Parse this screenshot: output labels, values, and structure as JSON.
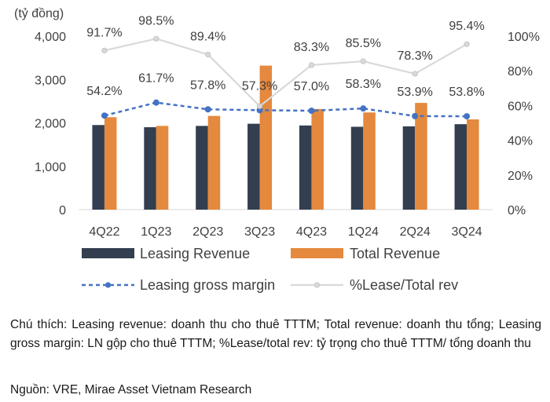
{
  "chart_data": {
    "type": "bar+line",
    "unit_label": "(tỷ đồng)",
    "categories": [
      "4Q22",
      "1Q23",
      "2Q23",
      "3Q23",
      "4Q23",
      "1Q24",
      "2Q24",
      "3Q24"
    ],
    "series": [
      {
        "name": "Leasing Revenue",
        "type": "bar",
        "axis": "left",
        "color": "#333f50",
        "values": [
          1950,
          1900,
          1930,
          1980,
          1940,
          1910,
          1920,
          1970
        ]
      },
      {
        "name": "Total Revenue",
        "type": "bar",
        "axis": "left",
        "color": "#e4893d",
        "values": [
          2130,
          1930,
          2160,
          3320,
          2320,
          2240,
          2460,
          2080
        ]
      },
      {
        "name": "Leasing gross margin",
        "type": "line",
        "axis": "right",
        "color": "#4472c4",
        "values": [
          54.2,
          61.7,
          57.8,
          57.3,
          57.0,
          58.3,
          53.9,
          53.8
        ],
        "labels": [
          "54.2%",
          "61.7%",
          "57.8%",
          "57.3%",
          "57.0%",
          "58.3%",
          "53.9%",
          "53.8%"
        ]
      },
      {
        "name": "%Lease/Total rev",
        "type": "line",
        "axis": "right",
        "color": "#d9d9d9",
        "values": [
          91.7,
          98.5,
          89.4,
          59.6,
          83.3,
          85.5,
          78.3,
          95.4
        ],
        "labels": [
          "91.7%",
          "98.5%",
          "89.4%",
          "",
          "83.3%",
          "85.5%",
          "78.3%",
          "95.4%"
        ]
      }
    ],
    "y_left": {
      "min": 0,
      "max": 4000,
      "ticks": [
        0,
        1000,
        2000,
        3000,
        4000
      ],
      "tick_labels": [
        "0",
        "1,000",
        "2,000",
        "3,000",
        "4,000"
      ]
    },
    "y_right": {
      "min": 0,
      "max": 100,
      "ticks": [
        0,
        20,
        40,
        60,
        80,
        100
      ],
      "tick_labels": [
        "0%",
        "20%",
        "40%",
        "60%",
        "80%",
        "100%"
      ]
    },
    "grid": false,
    "legend_position": "bottom"
  },
  "note": "Chú thích: Leasing revenue: doanh thu cho thuê TTTM; Total revenue: doanh thu tổng; Leasing gross margin: LN gộp cho thuê TTTM; %Lease/total rev: tỷ trọng cho thuê TTTM/ tổng doanh thu",
  "source": "Nguồn: VRE, Mirae Asset Vietnam Research"
}
